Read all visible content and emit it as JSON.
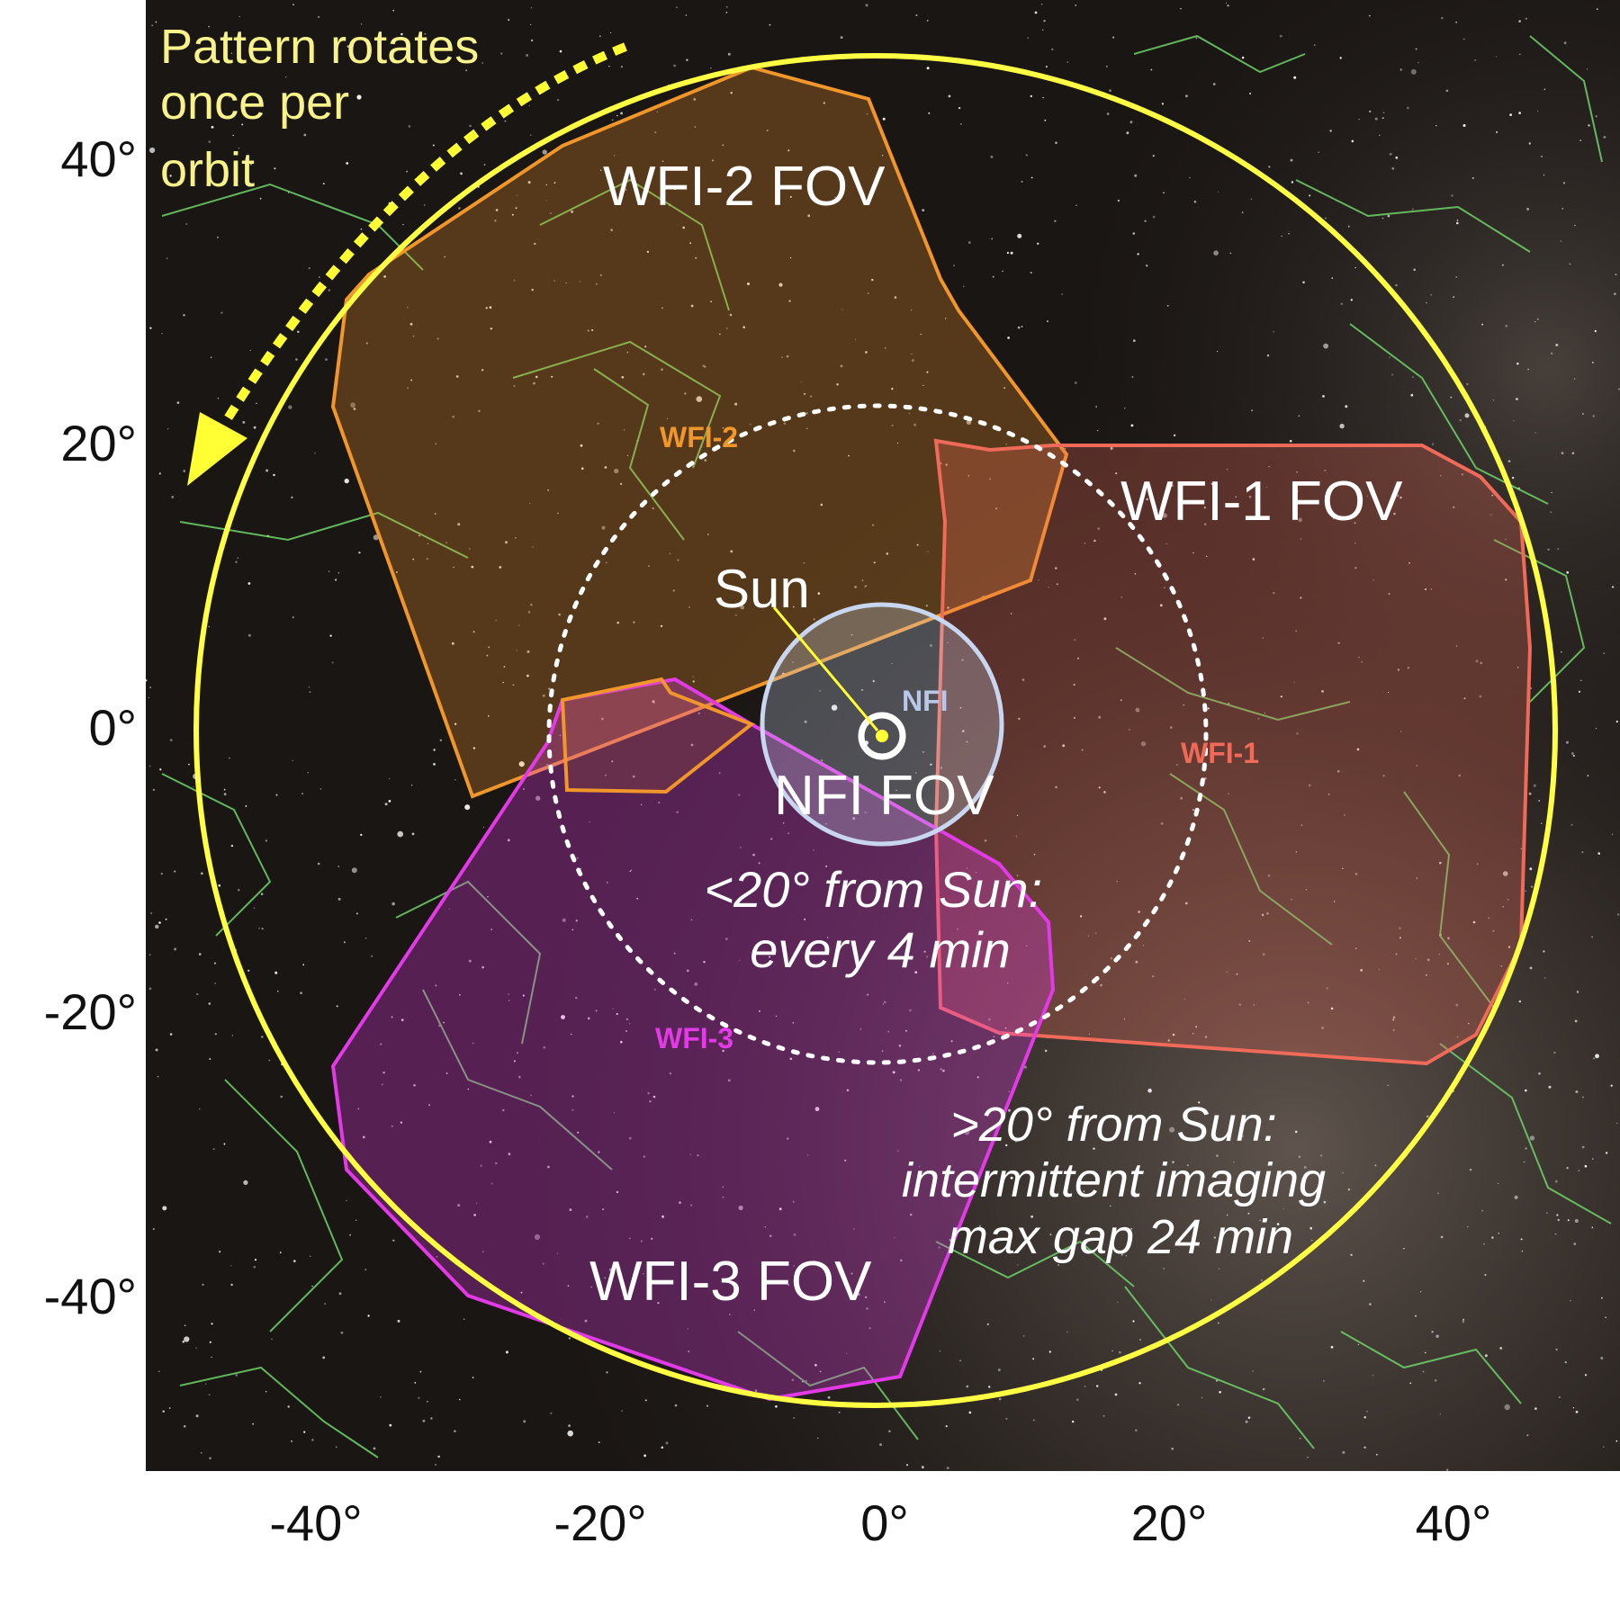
{
  "figure": {
    "annotation": [
      "Pattern rotates",
      "once per",
      "orbit"
    ],
    "fov_labels": {
      "wfi2": "WFI-2 FOV",
      "wfi1": "WFI-1 FOV",
      "wfi3": "WFI-3 FOV",
      "nfi": "NFI FOV"
    },
    "small_labels": {
      "wfi2": "WFI-2",
      "wfi1": "WFI-1",
      "wfi3": "WFI-3",
      "nfi": "NFI"
    },
    "sun_label": "Sun",
    "inner_zone_text": [
      "<20° from Sun:",
      "every 4 min"
    ],
    "outer_zone_text": [
      ">20° from Sun:",
      "intermittent imaging",
      "max gap 24 min"
    ]
  },
  "axes": {
    "x_ticks": [
      "-40°",
      "-20°",
      "0°",
      "20°",
      "40°"
    ],
    "y_ticks": [
      "40°",
      "20°",
      "0°",
      "-20°",
      "-40°"
    ],
    "x_tick_values": [
      -40,
      -20,
      0,
      20,
      40
    ],
    "y_tick_values": [
      40,
      20,
      0,
      -20,
      -40
    ],
    "xlim": [
      -51,
      50
    ],
    "ylim": [
      -52,
      50
    ]
  },
  "colors": {
    "sky": "#1a1614",
    "constellation": "#6fd36a",
    "outer_circle": "#ffff44",
    "wfi2": "#f0962a",
    "wfi1": "#f06a5a",
    "wfi3": "#e23ae6",
    "nfi": "#c8d6f0",
    "arrow": "#ffff33",
    "dotted_circle": "#ffffff"
  },
  "icons": [
    "sun-symbol-icon",
    "rotation-arrow-icon"
  ]
}
